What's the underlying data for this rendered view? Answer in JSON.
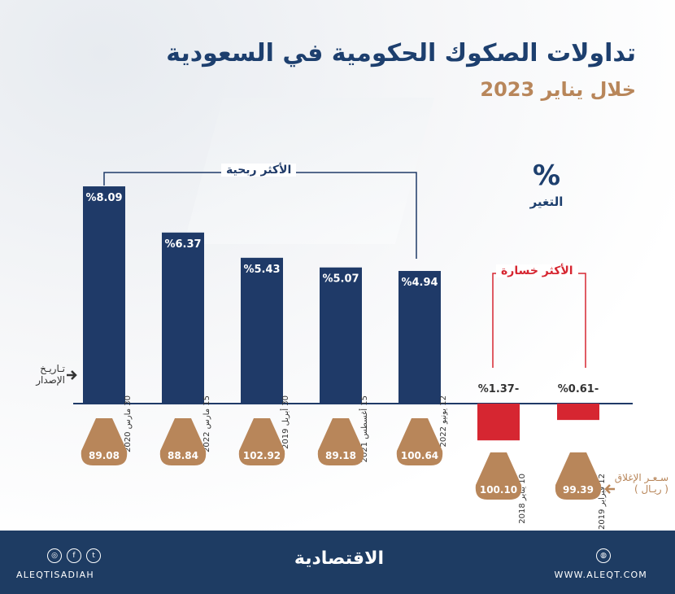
{
  "header": {
    "title": "تداولات الصكوك الحكومية في السعودية",
    "subtitle": "خلال يناير 2023"
  },
  "legend": {
    "percent_symbol": "%",
    "percent_label": "التغير",
    "issue_date_label": "تـاريـخ الإصدار",
    "closing_price_label": "سـعـر الإغلاق",
    "closing_price_unit": "( ريـال )"
  },
  "groups": {
    "gainers_label": "الأكثر ربحية",
    "losers_label": "الأكثر خسارة"
  },
  "chart_data": {
    "type": "bar",
    "unit": "%",
    "categories": [
      "30 مارس 2020",
      "15 مارس 2022",
      "30 أبريل 2019",
      "15 أغسطس 2021",
      "12 يونيو 2022",
      "10 يناير 2018",
      "12 فبراير 2019"
    ],
    "values": [
      8.09,
      6.37,
      5.43,
      5.07,
      4.94,
      -1.37,
      -0.61
    ],
    "value_labels": [
      "%8.09",
      "%6.37",
      "%5.43",
      "%5.07",
      "%4.94",
      "%1.37-",
      "%0.61-"
    ],
    "closing_prices": [
      "89.08",
      "88.84",
      "102.92",
      "89.18",
      "100.64",
      "100.10",
      "99.39"
    ],
    "colors": {
      "gain": "#1f3a68",
      "loss": "#d62631",
      "price": "#b8865a"
    }
  },
  "footer": {
    "logo": "الاقتصادية",
    "handle": "ALEQTISADIAH",
    "website": "WWW.ALEQT.COM",
    "social_icons": [
      "instagram-icon",
      "facebook-icon",
      "twitter-icon"
    ],
    "globe_icon": "globe-icon"
  }
}
